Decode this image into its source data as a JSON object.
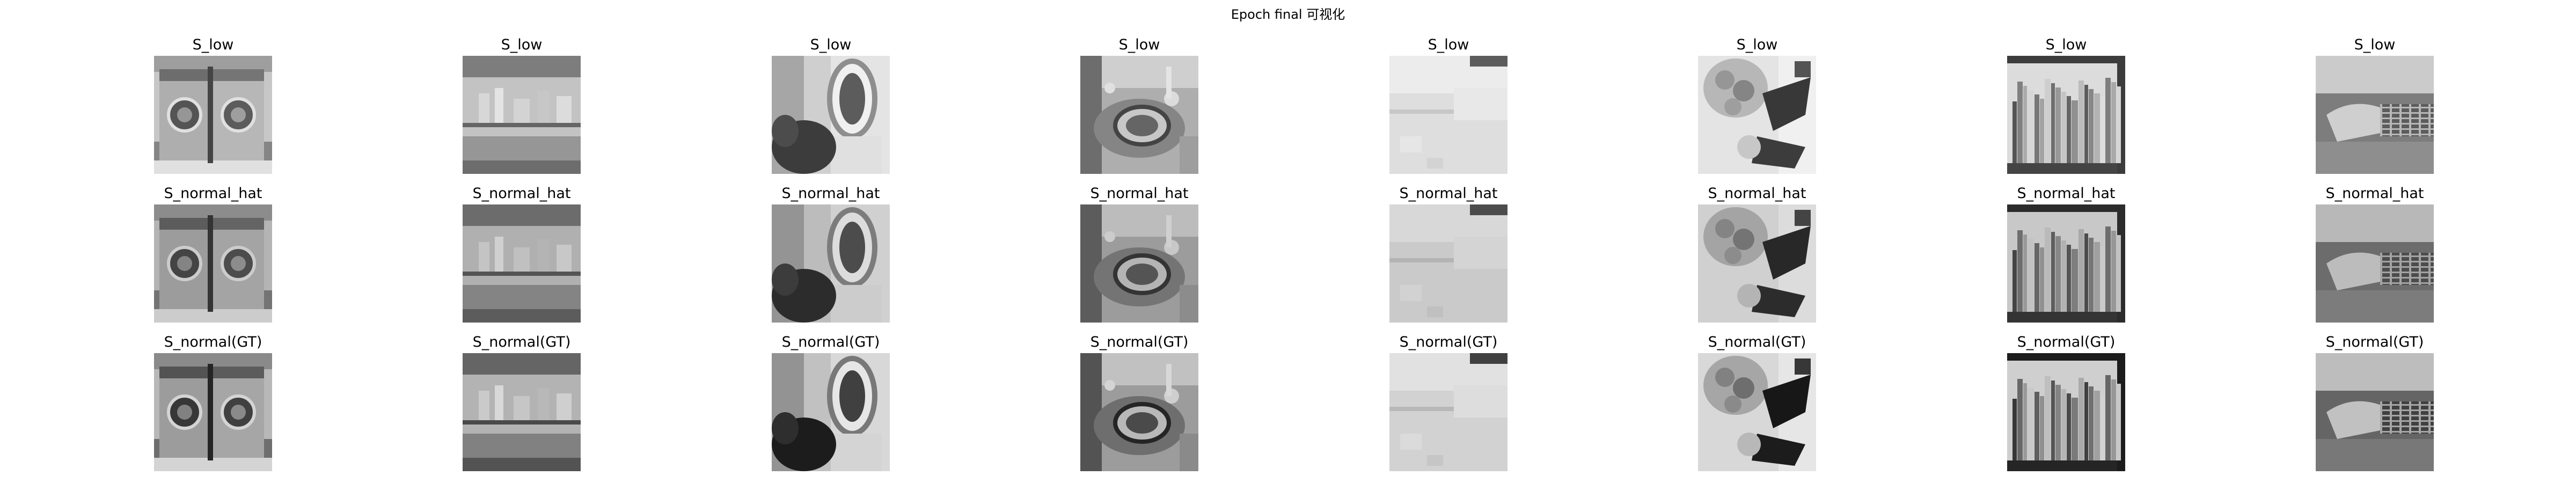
{
  "figure": {
    "title": "Epoch final 可视化",
    "row_labels": [
      "S_low",
      "S_normal_hat",
      "S_normal(GT)"
    ],
    "columns": [
      {
        "scene": "washing-machine"
      },
      {
        "scene": "kitchen-shelf"
      },
      {
        "scene": "ornate-mirror"
      },
      {
        "scene": "tea-set-table"
      },
      {
        "scene": "bright-room-floor"
      },
      {
        "scene": "flowers-and-shoes"
      },
      {
        "scene": "bookshelf"
      },
      {
        "scene": "plaid-sofa"
      }
    ]
  }
}
